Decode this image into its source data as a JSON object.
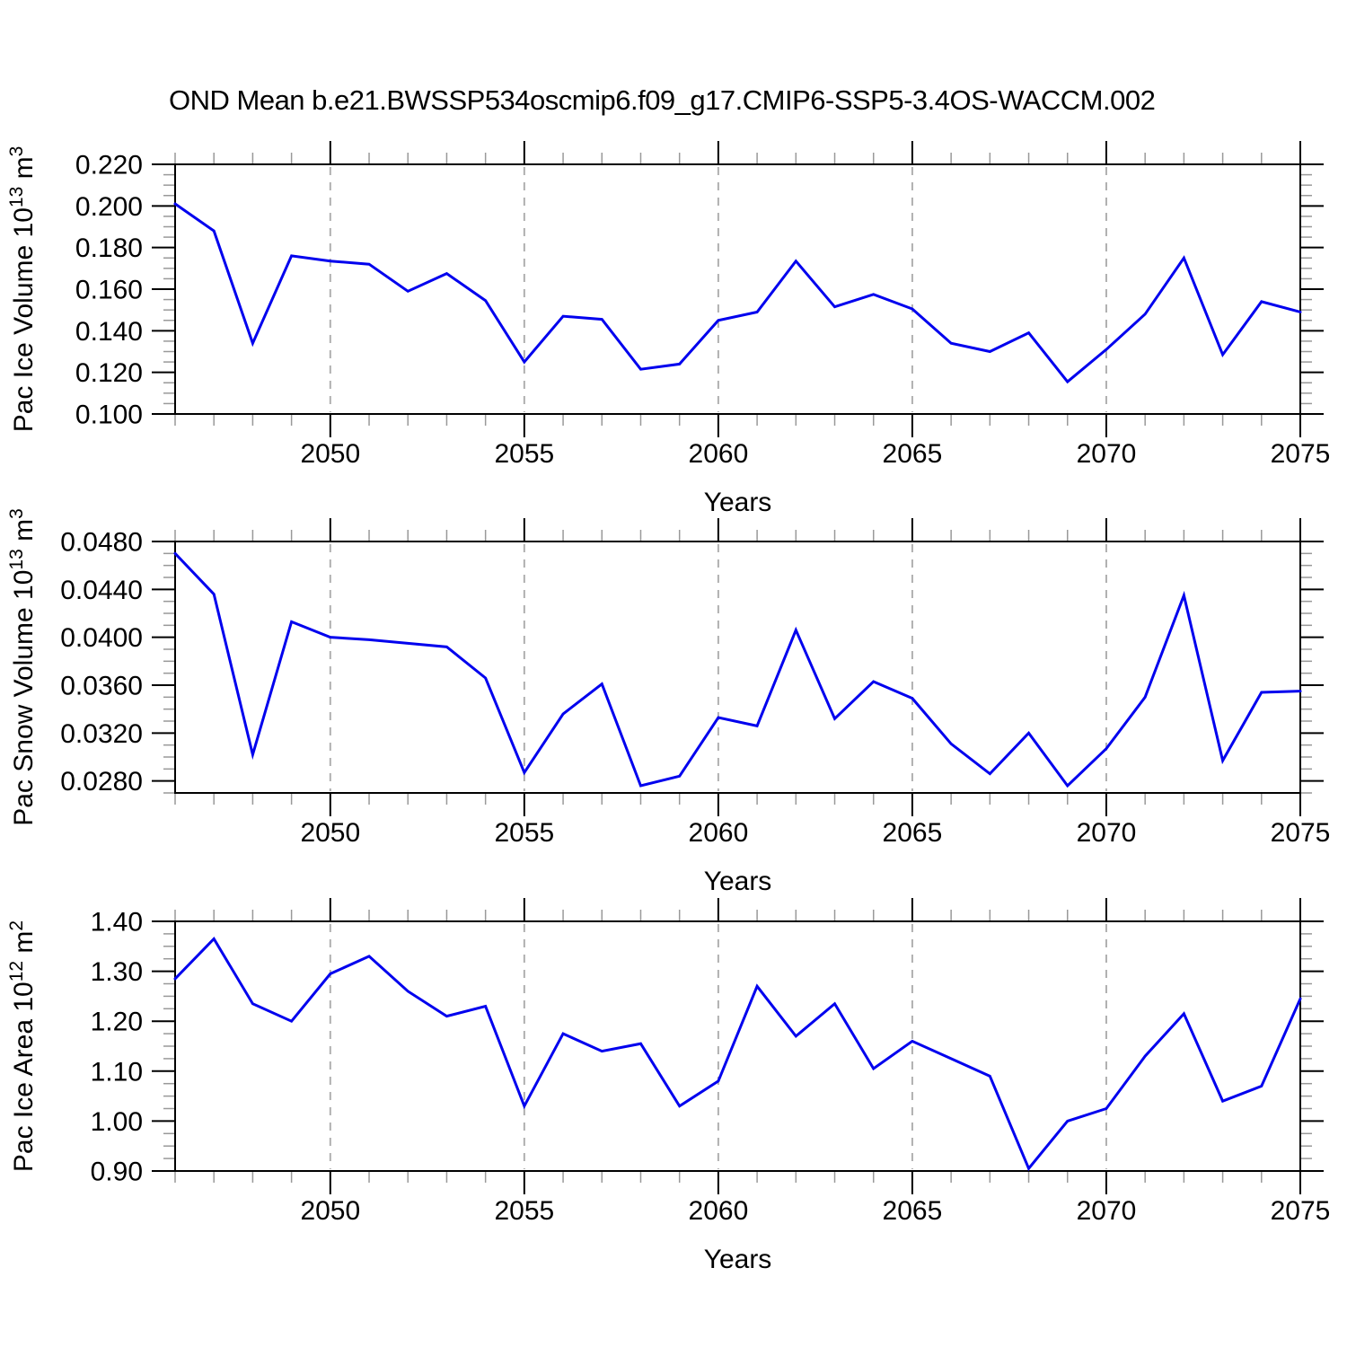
{
  "title": "OND Mean b.e21.BWSSP534oscmip6.f09_g17.CMIP6-SSP5-3.4OS-WACCM.002",
  "colors": {
    "line": "#0000ee",
    "grid_dash": "#b0b0b0",
    "axis": "#000000",
    "minor_tick": "#999999"
  },
  "chart_data": {
    "type": "line",
    "title": "OND Mean b.e21.BWSSP534oscmip6.f09_g17.CMIP6-SSP5-3.4OS-WACCM.002",
    "xlabel": "Years",
    "x_years": [
      2046,
      2047,
      2048,
      2049,
      2050,
      2051,
      2052,
      2053,
      2054,
      2055,
      2056,
      2057,
      2058,
      2059,
      2060,
      2061,
      2062,
      2063,
      2064,
      2065,
      2066,
      2067,
      2068,
      2069,
      2070,
      2071,
      2072,
      2073,
      2074,
      2075
    ],
    "xlim": [
      2046,
      2075
    ],
    "xticks": [
      2050,
      2055,
      2060,
      2065,
      2070,
      2075
    ],
    "xtick_labels": [
      "2050",
      "2055",
      "2060",
      "2065",
      "2070",
      "2075"
    ],
    "grid": "dashed vertical gridlines at interior major x ticks (2050-2070)",
    "legend": "none",
    "charts": [
      {
        "id": "ice-volume",
        "ylabel_text": "Pac Ice Volume 10^13 m^3",
        "ylabel_segments": [
          {
            "t": "Pac Ice Volume 10"
          },
          {
            "t": "13",
            "sup": true
          },
          {
            "t": " m"
          },
          {
            "t": "3",
            "sup": true
          }
        ],
        "ylim": [
          0.1,
          0.22
        ],
        "yticks": [
          0.1,
          0.12,
          0.14,
          0.16,
          0.18,
          0.2,
          0.22
        ],
        "ytick_labels": [
          "0.100",
          "0.120",
          "0.140",
          "0.160",
          "0.180",
          "0.200",
          "0.220"
        ],
        "ytick_minor_step": 0.005,
        "values": [
          0.201,
          0.188,
          0.134,
          0.176,
          0.1735,
          0.172,
          0.159,
          0.1675,
          0.1545,
          0.125,
          0.147,
          0.1455,
          0.1215,
          0.124,
          0.145,
          0.149,
          0.1735,
          0.1515,
          0.1575,
          0.1505,
          0.134,
          0.13,
          0.139,
          0.1155,
          0.131,
          0.148,
          0.175,
          0.1285,
          0.154,
          0.149
        ]
      },
      {
        "id": "snow-volume",
        "ylabel_text": "Pac Snow Volume 10^13 m^3",
        "ylabel_segments": [
          {
            "t": "Pac Snow Volume 10"
          },
          {
            "t": "13",
            "sup": true
          },
          {
            "t": " m"
          },
          {
            "t": "3",
            "sup": true
          }
        ],
        "ylim": [
          0.027,
          0.048
        ],
        "yticks": [
          0.028,
          0.032,
          0.036,
          0.04,
          0.044,
          0.048
        ],
        "ytick_labels": [
          "0.0280",
          "0.0320",
          "0.0360",
          "0.0400",
          "0.0440",
          "0.0480"
        ],
        "ytick_minor_step": 0.001,
        "values": [
          0.047,
          0.0436,
          0.0302,
          0.0413,
          0.04,
          0.0398,
          0.0395,
          0.0392,
          0.0366,
          0.0287,
          0.0336,
          0.0361,
          0.0276,
          0.0284,
          0.0333,
          0.0326,
          0.0406,
          0.0332,
          0.0363,
          0.0349,
          0.0311,
          0.0286,
          0.032,
          0.0276,
          0.0307,
          0.035,
          0.0435,
          0.0297,
          0.0354,
          0.0355
        ]
      },
      {
        "id": "ice-area",
        "ylabel_text": "Pac Ice Area 10^12 m^2",
        "ylabel_segments": [
          {
            "t": "Pac Ice Area 10"
          },
          {
            "t": "12",
            "sup": true
          },
          {
            "t": " m"
          },
          {
            "t": "2",
            "sup": true
          }
        ],
        "ylim": [
          0.9,
          1.4
        ],
        "yticks": [
          0.9,
          1.0,
          1.1,
          1.2,
          1.3,
          1.4
        ],
        "ytick_labels": [
          "0.90",
          "1.00",
          "1.10",
          "1.20",
          "1.30",
          "1.40"
        ],
        "ytick_minor_step": 0.025,
        "values": [
          1.285,
          1.365,
          1.235,
          1.2,
          1.295,
          1.33,
          1.26,
          1.21,
          1.23,
          1.03,
          1.175,
          1.14,
          1.155,
          1.03,
          1.08,
          1.27,
          1.17,
          1.235,
          1.105,
          1.16,
          1.125,
          1.09,
          0.905,
          1.0,
          1.025,
          1.13,
          1.215,
          1.04,
          1.07,
          1.245
        ]
      }
    ]
  }
}
